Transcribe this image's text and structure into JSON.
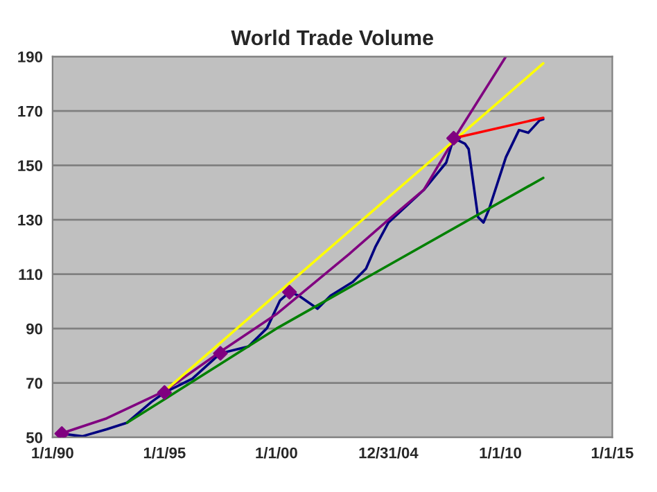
{
  "chart_data": {
    "type": "line",
    "title": "World Trade Volume",
    "xlim": [
      "1990-01-01",
      "2015-01-01"
    ],
    "xticks": [
      {
        "value": "1990-01-01",
        "label": "1/1/90"
      },
      {
        "value": "1995-01-01",
        "label": "1/1/95"
      },
      {
        "value": "2000-01-01",
        "label": "1/1/00"
      },
      {
        "value": "2004-12-31",
        "label": "12/31/04"
      },
      {
        "value": "2010-01-01",
        "label": "1/1/10"
      },
      {
        "value": "2015-01-01",
        "label": "1/1/15"
      }
    ],
    "ylim": [
      50,
      190
    ],
    "yticks": [
      50,
      70,
      90,
      110,
      130,
      150,
      170,
      190
    ],
    "grid": "y",
    "legend": false,
    "series": [
      {
        "color": "#000080",
        "marker": "none",
        "line_style": "solid",
        "x": [
          "1990-06",
          "1991-05",
          "1992-06",
          "1993-05",
          "1994-06",
          "1995-01",
          "1996-04",
          "1997-07",
          "1998-10",
          "1999-08",
          "2000-03",
          "2000-08",
          "2001-01",
          "2001-11",
          "2002-06",
          "2003-06",
          "2004-01",
          "2004-06",
          "2005-01",
          "2006-08",
          "2007-08",
          "2007-12",
          "2008-06",
          "2008-08",
          "2009-01",
          "2009-04",
          "2009-07",
          "2010-04",
          "2010-11",
          "2011-04",
          "2011-10",
          "2011-12"
        ],
        "values": [
          51.4,
          50.4,
          53,
          55.4,
          63,
          66.5,
          71.6,
          80.9,
          83.4,
          90.2,
          100.4,
          103.4,
          102.1,
          97.3,
          102.1,
          107.2,
          112,
          120,
          129,
          141,
          151,
          160,
          158,
          156,
          131,
          129,
          134,
          153,
          163,
          162,
          166.5,
          167
        ]
      },
      {
        "color": "#800080",
        "marker": "none",
        "line_style": "solid",
        "x": [
          "1990-06",
          "1992-06",
          "1995-01",
          "1997-07",
          "2000-01",
          "2003-04",
          "2005-01",
          "2006-08",
          "2008-01",
          "2010-04"
        ],
        "values": [
          51.5,
          57,
          67,
          81.5,
          95.3,
          117.4,
          130,
          141,
          160.6,
          190
        ]
      },
      {
        "color": "#ffff00",
        "marker": "none",
        "line_style": "solid",
        "x": [
          "1995-01",
          "2011-12"
        ],
        "values": [
          67,
          187.5
        ]
      },
      {
        "color": "#008000",
        "marker": "none",
        "line_style": "solid",
        "x": [
          "1993-05",
          "1995-01",
          "1997-07",
          "2000-01",
          "2011-12"
        ],
        "values": [
          55.4,
          64,
          77,
          90,
          145.4
        ]
      },
      {
        "color": "#ff0000",
        "marker": "none",
        "line_style": "solid",
        "x": [
          "2007-12",
          "2011-12"
        ],
        "values": [
          160,
          167.5
        ]
      },
      {
        "type": "scatter",
        "color": "#800080",
        "marker": "diamond",
        "x": [
          "1990-06",
          "1995-01",
          "1997-07",
          "2000-08",
          "2007-12"
        ],
        "values": [
          51.4,
          66.5,
          80.9,
          103.4,
          160
        ]
      }
    ]
  }
}
